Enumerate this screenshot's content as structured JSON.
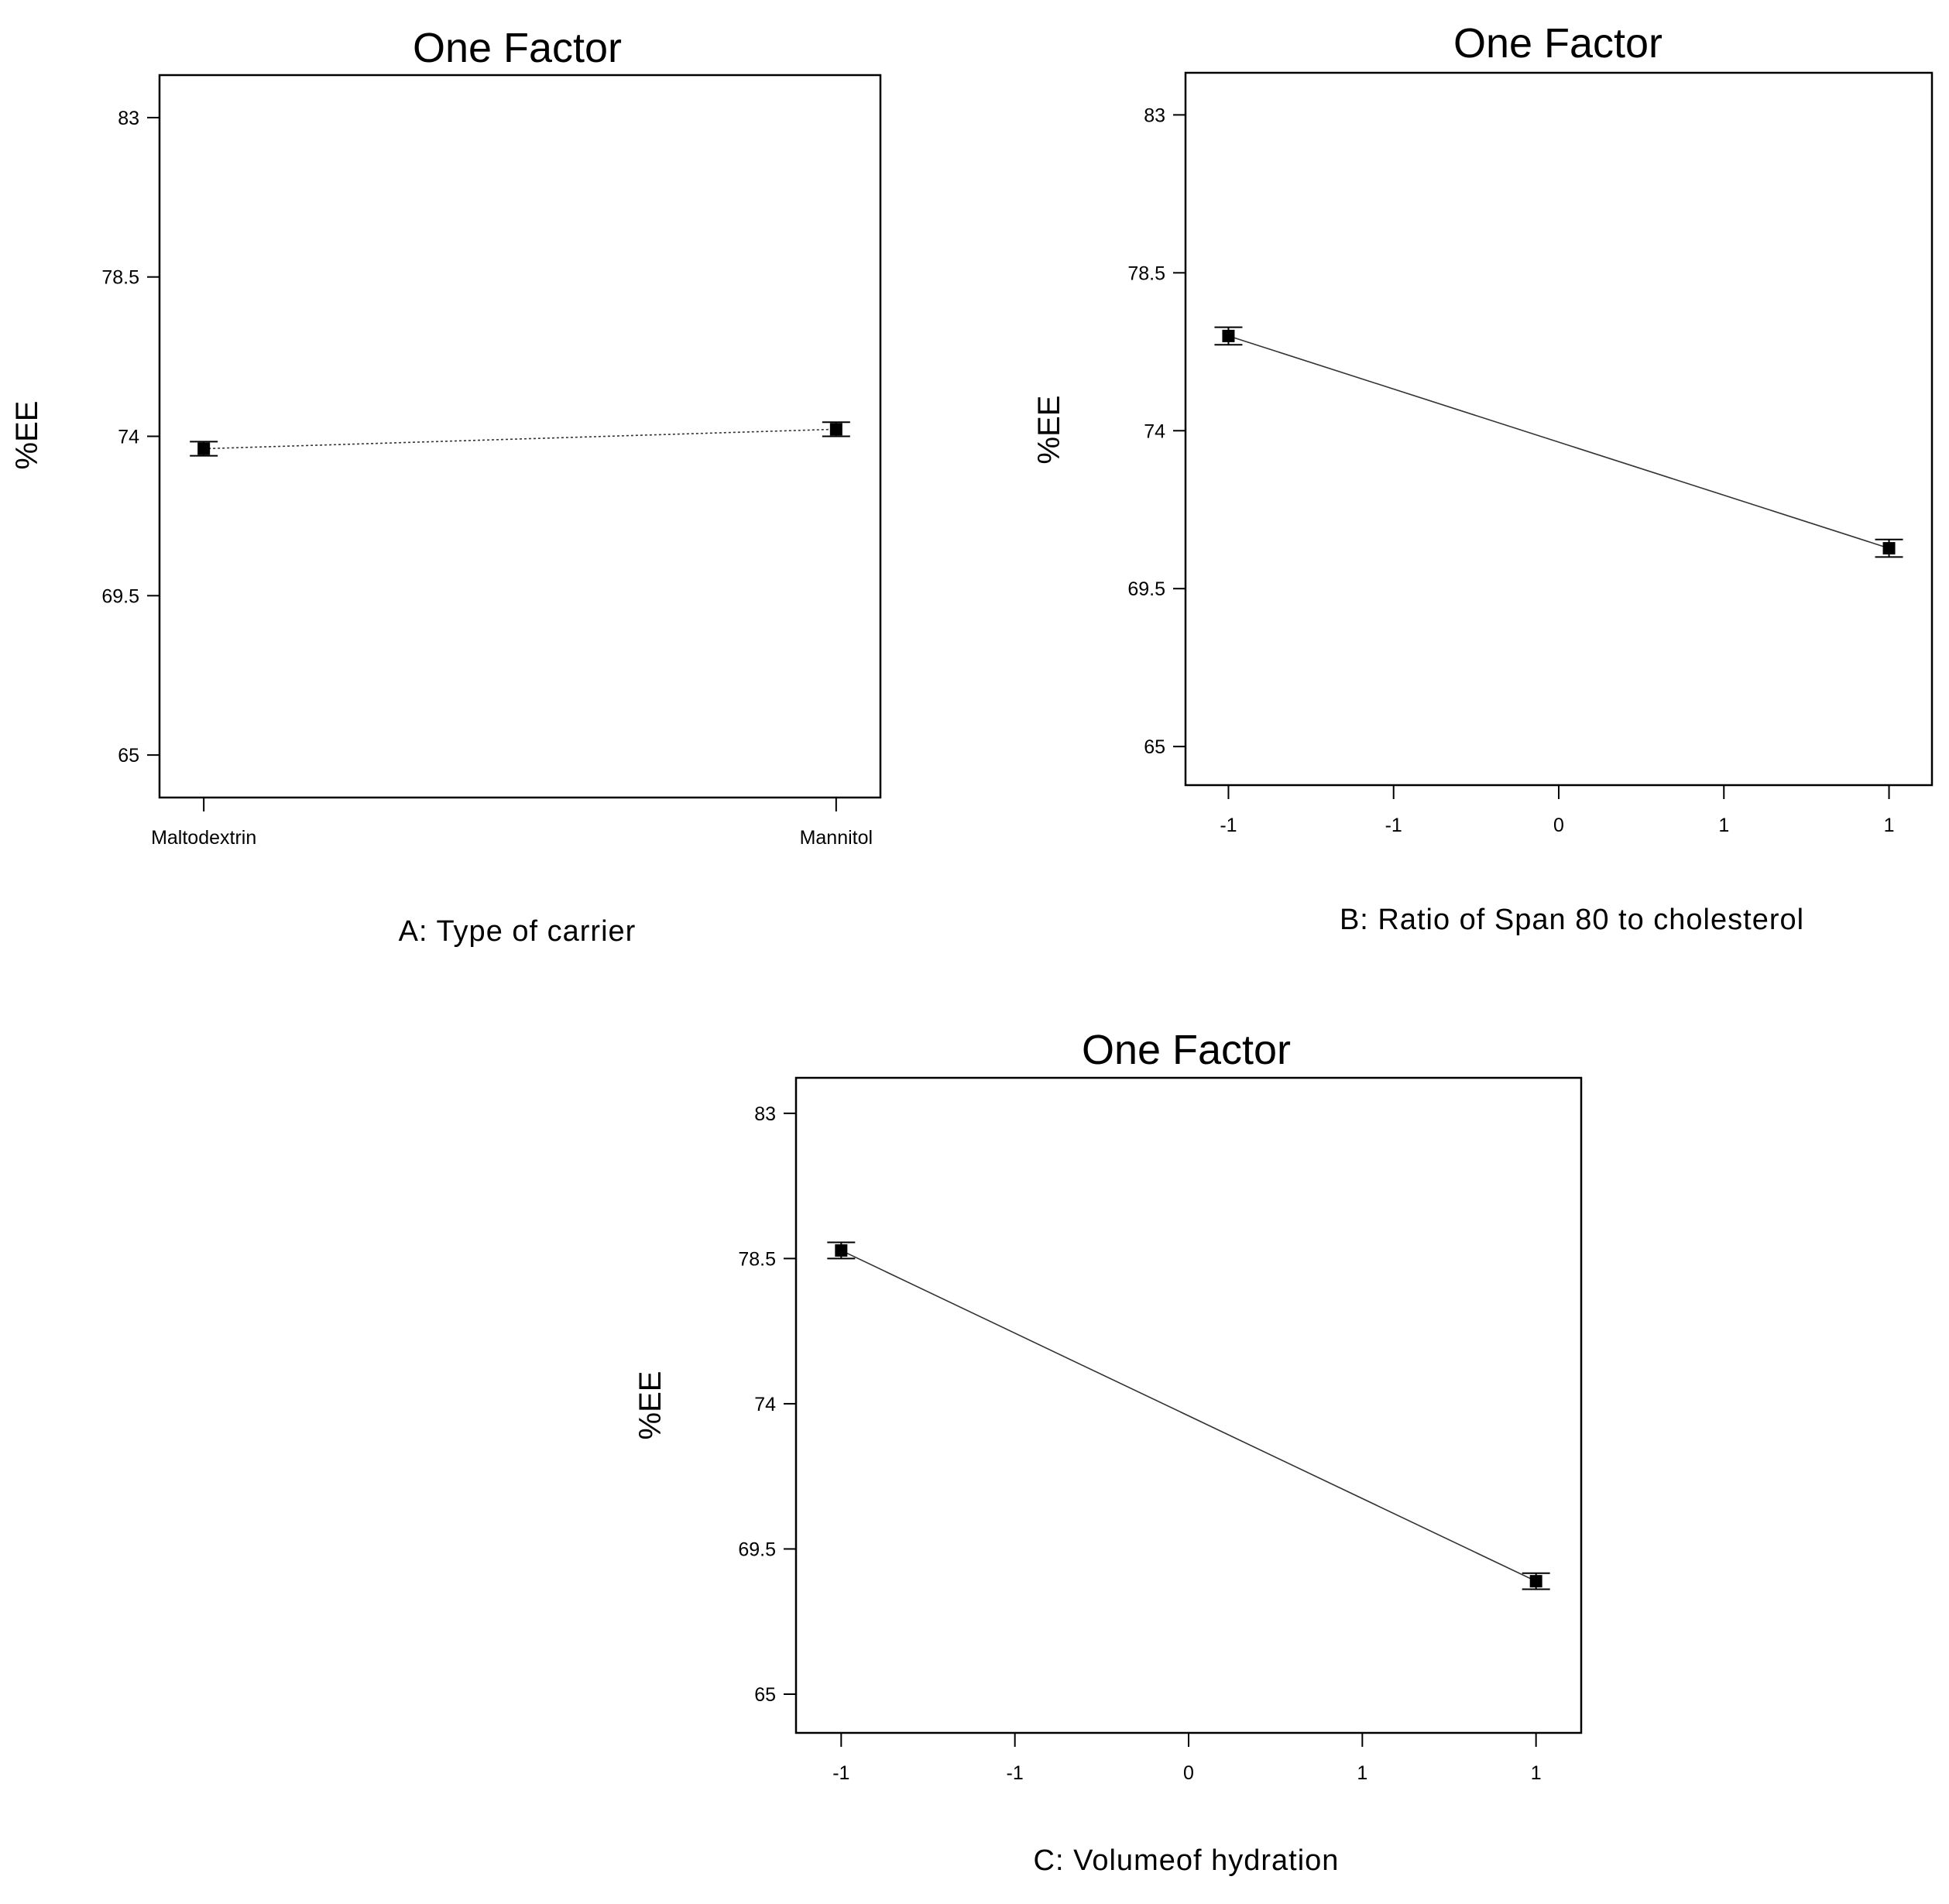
{
  "chart_data": [
    {
      "type": "line",
      "title": "One Factor",
      "xlabel": "A: Type of carrier",
      "ylabel": "%EE",
      "ylim": [
        63.8,
        84.2
      ],
      "yticks": [
        65,
        69.5,
        74,
        78.5,
        83
      ],
      "ytick_labels": [
        "65",
        "69.5",
        "74",
        "78.5",
        "83"
      ],
      "categories": [
        "Maltodextrin",
        "Mannitol"
      ],
      "xtick_labels": [
        "Maltodextrin",
        "Mannitol"
      ],
      "x": [
        0,
        1
      ],
      "xlim": [
        -0.07,
        1.07
      ],
      "series": [
        {
          "values": [
            73.65,
            74.2
          ],
          "err": [
            0.2,
            0.2
          ]
        }
      ],
      "line_style": "dotted",
      "grid": false
    },
    {
      "type": "line",
      "title": "One Factor",
      "xlabel": "B: Ratio of Span 80 to cholesterol",
      "ylabel": "%EE",
      "ylim": [
        63.9,
        84.2
      ],
      "yticks": [
        65,
        69.5,
        74,
        78.5,
        83
      ],
      "ytick_labels": [
        "65",
        "69.5",
        "74",
        "78.5",
        "83"
      ],
      "xticks": [
        -1,
        -0.5,
        0,
        0.5,
        1
      ],
      "xtick_labels": [
        "-1",
        "-1",
        "0",
        "1",
        "1"
      ],
      "x": [
        -1,
        1
      ],
      "xlim": [
        -1.13,
        1.13
      ],
      "series": [
        {
          "values": [
            76.7,
            70.65
          ],
          "err": [
            0.25,
            0.25
          ]
        }
      ],
      "line_style": "solid",
      "grid": false
    },
    {
      "type": "line",
      "title": "One Factor",
      "xlabel": "C: Volumeof hydration",
      "ylabel": "%EE",
      "ylim": [
        63.8,
        84.1
      ],
      "yticks": [
        65,
        69.5,
        74,
        78.5,
        83
      ],
      "ytick_labels": [
        "65",
        "69.5",
        "74",
        "78.5",
        "83"
      ],
      "xticks": [
        -1,
        -0.5,
        0,
        0.5,
        1
      ],
      "xtick_labels": [
        "-1",
        "-1",
        "0",
        "1",
        "1"
      ],
      "x": [
        -1,
        1
      ],
      "xlim": [
        -1.13,
        1.13
      ],
      "series": [
        {
          "values": [
            78.75,
            68.5
          ],
          "err": [
            0.25,
            0.25
          ]
        }
      ],
      "line_style": "solid",
      "grid": false
    }
  ]
}
